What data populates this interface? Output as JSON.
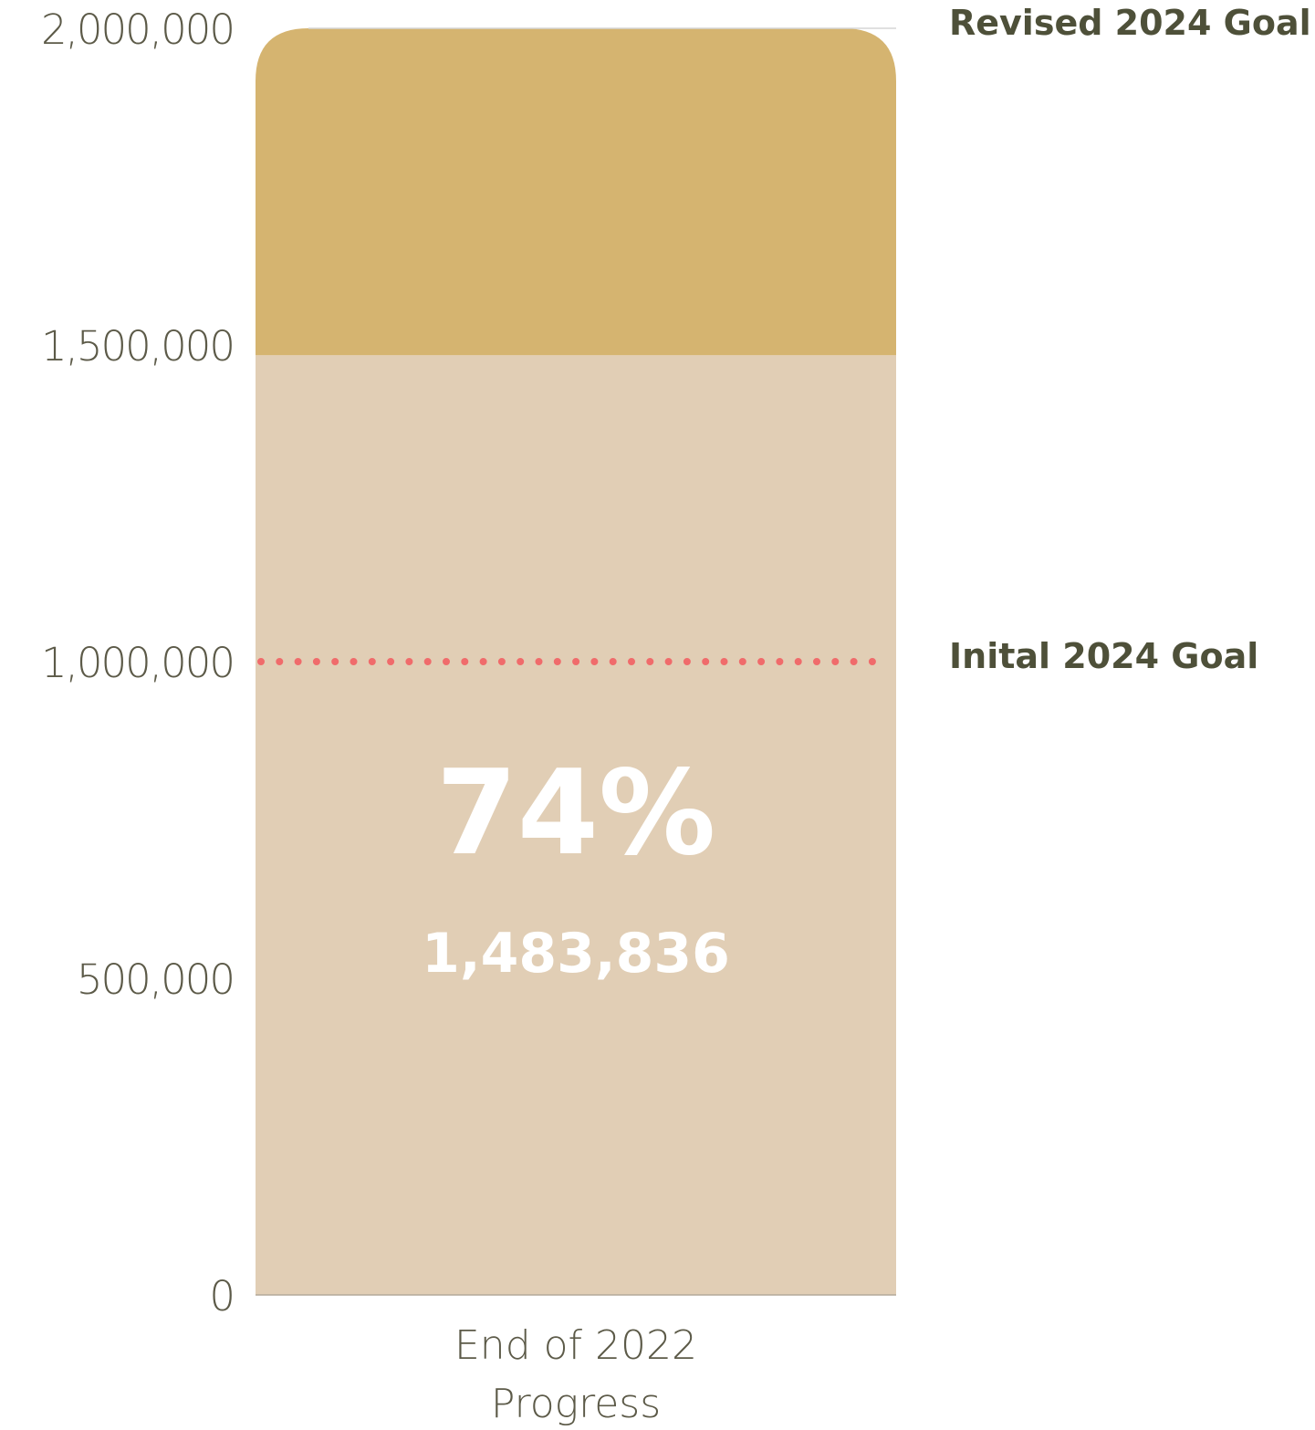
{
  "chart_data": {
    "type": "bar",
    "categories": [
      "End of 2022 Progress"
    ],
    "category_label_lines": [
      "End of 2022",
      "Progress"
    ],
    "series": [
      {
        "values": [
          1483836
        ],
        "color": "#E1CEB5"
      },
      {
        "values": [
          516164
        ],
        "color": "#D5B470"
      }
    ],
    "total_goal": 2000000,
    "ylim": [
      0,
      2000000
    ],
    "yticks": [
      0,
      500000,
      1000000,
      1500000,
      2000000
    ],
    "ytick_labels": [
      "0",
      "500,000",
      "1,000,000",
      "1,500,000",
      "2,000,000"
    ],
    "progress_percent_label": "74%",
    "progress_value_label": "1,483,836",
    "reference_lines": [
      {
        "value": 2000000,
        "label": "Revised 2024 Goal",
        "style": "solid",
        "color": "#D5D5D5"
      },
      {
        "value": 1000000,
        "label": "Inital 2024 Goal",
        "style": "dotted",
        "color": "#F06B6B"
      }
    ],
    "colors": {
      "tick_text": "#5C5A48",
      "annotation_text": "#4E5039",
      "bar_text": "#FFFFFF",
      "axis": "#B3A89A"
    }
  }
}
